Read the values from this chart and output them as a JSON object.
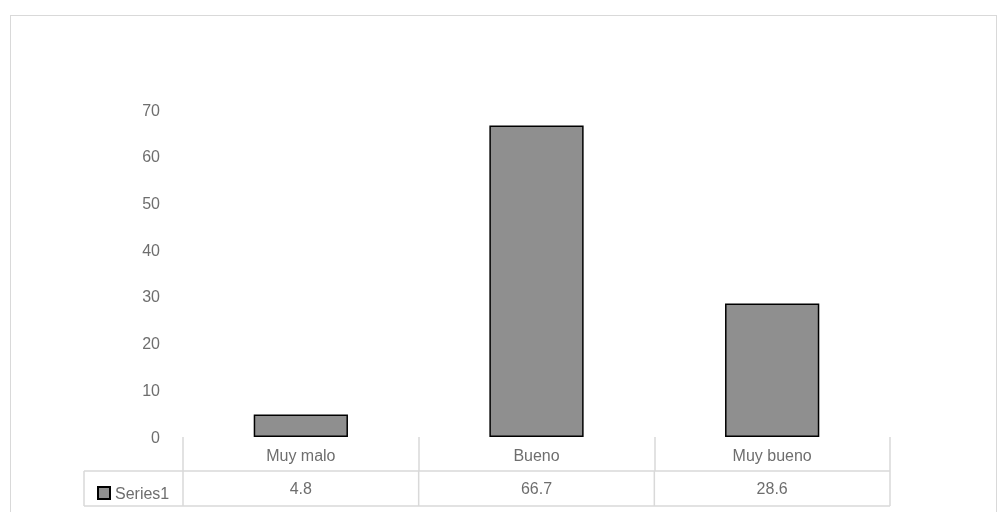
{
  "chart_data": {
    "type": "bar",
    "categories": [
      "Muy malo",
      "Bueno",
      "Muy bueno"
    ],
    "series": [
      {
        "name": "Series1",
        "color": "#8f8f8f",
        "values": [
          4.8,
          66.7,
          28.6
        ]
      }
    ],
    "ylim": [
      0,
      70
    ],
    "yticks": [
      0,
      10,
      20,
      30,
      40,
      50,
      60,
      70
    ],
    "grid": false,
    "legend": "bottom left",
    "data_labels": true
  }
}
